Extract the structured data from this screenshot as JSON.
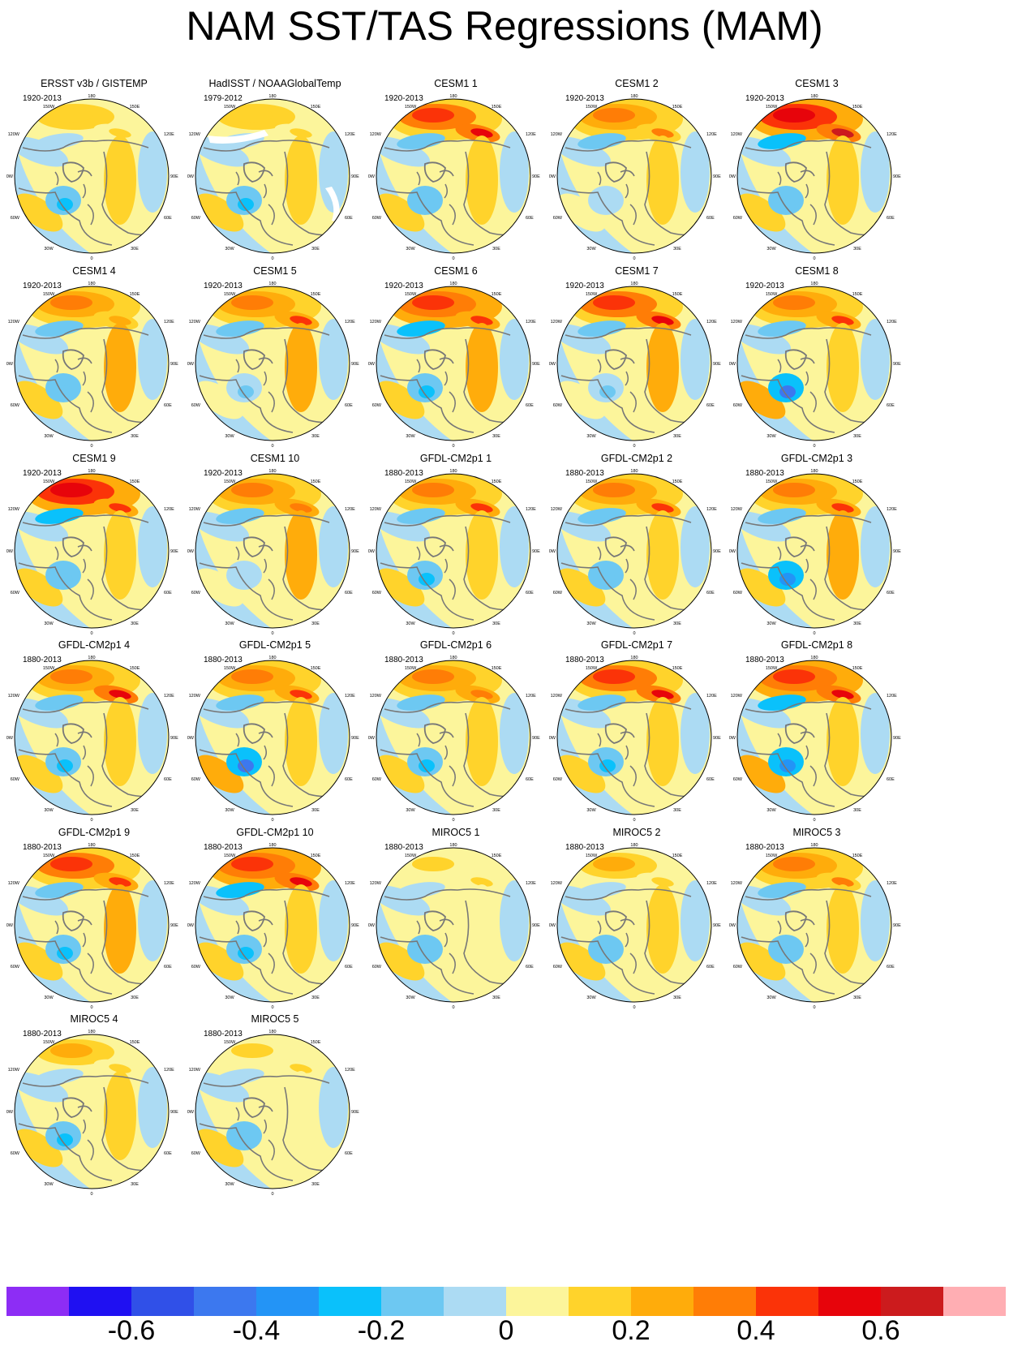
{
  "title": "NAM SST/TAS Regressions (MAM)",
  "map_labels": {
    "top": "180",
    "bottom": "0",
    "left": "90W",
    "right": "90E",
    "upper_left": "150W",
    "upper_right": "150E",
    "mid_left_upper": "120W",
    "mid_right_upper": "120E",
    "mid_left_lower": "60W",
    "mid_right_lower": "60E",
    "lower_left": "30W",
    "lower_right": "30E"
  },
  "panels": [
    {
      "title": "ERSST v3b / GISTEMP",
      "period": "1920-2013",
      "pacific": 0.15,
      "siberia": 0.1,
      "labrador": -0.3,
      "eurasia": 0.1,
      "missing": false
    },
    {
      "title": "HadISST / NOAAGlobalTemp",
      "period": "1979-2012",
      "pacific": 0.15,
      "siberia": 0.1,
      "labrador": -0.3,
      "eurasia": 0.1,
      "missing": true
    },
    {
      "title": "CESM1 1",
      "period": "1920-2013",
      "pacific": 0.4,
      "siberia": 0.55,
      "labrador": -0.2,
      "eurasia": 0.15,
      "missing": false
    },
    {
      "title": "CESM1 2",
      "period": "1920-2013",
      "pacific": 0.35,
      "siberia": 0.3,
      "labrador": -0.1,
      "eurasia": 0.1,
      "missing": false
    },
    {
      "title": "CESM1 3",
      "period": "1920-2013",
      "pacific": 0.55,
      "siberia": 0.6,
      "labrador": -0.2,
      "eurasia": 0.1,
      "missing": false
    },
    {
      "title": "CESM1 4",
      "period": "1920-2013",
      "pacific": 0.3,
      "siberia": 0.25,
      "labrador": -0.2,
      "eurasia": 0.2,
      "missing": false
    },
    {
      "title": "CESM1 5",
      "period": "1920-2013",
      "pacific": 0.3,
      "siberia": 0.45,
      "labrador": -0.15,
      "eurasia": 0.2,
      "missing": false
    },
    {
      "title": "CESM1 6",
      "period": "1920-2013",
      "pacific": 0.45,
      "siberia": 0.4,
      "labrador": -0.3,
      "eurasia": 0.2,
      "missing": false
    },
    {
      "title": "CESM1 7",
      "period": "1920-2013",
      "pacific": 0.4,
      "siberia": 0.5,
      "labrador": -0.15,
      "eurasia": 0.2,
      "missing": false
    },
    {
      "title": "CESM1 8",
      "period": "1920-2013",
      "pacific": 0.35,
      "siberia": 0.45,
      "labrador": -0.5,
      "eurasia": 0.15,
      "missing": false
    },
    {
      "title": "CESM1 9",
      "period": "1920-2013",
      "pacific": 0.55,
      "siberia": 0.45,
      "labrador": -0.2,
      "eurasia": 0.15,
      "missing": false
    },
    {
      "title": "CESM1 10",
      "period": "1920-2013",
      "pacific": 0.35,
      "siberia": 0.35,
      "labrador": -0.1,
      "eurasia": 0.2,
      "missing": false
    },
    {
      "title": "GFDL-CM2p1 1",
      "period": "1880-2013",
      "pacific": 0.3,
      "siberia": 0.45,
      "labrador": -0.3,
      "eurasia": 0.1,
      "missing": false
    },
    {
      "title": "GFDL-CM2p1 2",
      "period": "1880-2013",
      "pacific": 0.3,
      "siberia": 0.45,
      "labrador": -0.2,
      "eurasia": 0.15,
      "missing": false
    },
    {
      "title": "GFDL-CM2p1 3",
      "period": "1880-2013",
      "pacific": 0.35,
      "siberia": 0.4,
      "labrador": -0.35,
      "eurasia": 0.2,
      "missing": false
    },
    {
      "title": "GFDL-CM2p1 4",
      "period": "1880-2013",
      "pacific": 0.35,
      "siberia": 0.55,
      "labrador": -0.3,
      "eurasia": 0.1,
      "missing": false
    },
    {
      "title": "GFDL-CM2p1 5",
      "period": "1880-2013",
      "pacific": 0.3,
      "siberia": 0.4,
      "labrador": -0.45,
      "eurasia": 0.1,
      "missing": false
    },
    {
      "title": "GFDL-CM2p1 6",
      "period": "1880-2013",
      "pacific": 0.3,
      "siberia": 0.35,
      "labrador": -0.3,
      "eurasia": 0.1,
      "missing": false
    },
    {
      "title": "GFDL-CM2p1 7",
      "period": "1880-2013",
      "pacific": 0.4,
      "siberia": 0.5,
      "labrador": -0.25,
      "eurasia": 0.1,
      "missing": false
    },
    {
      "title": "GFDL-CM2p1 8",
      "period": "1880-2013",
      "pacific": 0.45,
      "siberia": 0.5,
      "labrador": -0.4,
      "eurasia": 0.1,
      "missing": false
    },
    {
      "title": "GFDL-CM2p1 9",
      "period": "1880-2013",
      "pacific": 0.4,
      "siberia": 0.4,
      "labrador": -0.3,
      "eurasia": 0.2,
      "missing": false
    },
    {
      "title": "GFDL-CM2p1 10",
      "period": "1880-2013",
      "pacific": 0.45,
      "siberia": 0.55,
      "labrador": -0.3,
      "eurasia": 0.1,
      "missing": false
    },
    {
      "title": "MIROC5 1",
      "period": "1880-2013",
      "pacific": 0.1,
      "siberia": 0.1,
      "labrador": -0.2,
      "eurasia": 0.05,
      "missing": false
    },
    {
      "title": "MIROC5 2",
      "period": "1880-2013",
      "pacific": 0.2,
      "siberia": 0.15,
      "labrador": -0.2,
      "eurasia": 0.1,
      "missing": false
    },
    {
      "title": "MIROC5 3",
      "period": "1880-2013",
      "pacific": 0.35,
      "siberia": 0.3,
      "labrador": -0.2,
      "eurasia": 0.1,
      "missing": false
    },
    {
      "title": "MIROC5 4",
      "period": "1880-2013",
      "pacific": 0.2,
      "siberia": 0.1,
      "labrador": -0.25,
      "eurasia": 0.1,
      "missing": false
    },
    {
      "title": "MIROC5 5",
      "period": "1880-2013",
      "pacific": 0.1,
      "siberia": 0.1,
      "labrador": -0.2,
      "eurasia": 0.05,
      "missing": false
    }
  ],
  "colorbar": {
    "colors": [
      "#8d2df5",
      "#1f10f2",
      "#3050e8",
      "#3c78ef",
      "#2394f6",
      "#0ac1fb",
      "#6dc8f2",
      "#acdbf3",
      "#fcf59b",
      "#ffd32b",
      "#ffac0b",
      "#ff7d06",
      "#fb3308",
      "#e7040b",
      "#cc1b1d",
      "#ffaeb3"
    ],
    "labels": [
      "-0.6",
      "-0.4",
      "-0.2",
      "0",
      "0.2",
      "0.4",
      "0.6"
    ],
    "label_values": [
      -0.6,
      -0.4,
      -0.2,
      0,
      0.2,
      0.4,
      0.6
    ],
    "levels": [
      -0.7,
      -0.6,
      -0.5,
      -0.4,
      -0.3,
      -0.2,
      -0.1,
      0,
      0.1,
      0.2,
      0.3,
      0.4,
      0.5,
      0.6,
      0.7
    ],
    "missing_color": "#ffffff",
    "coast_color": "#777777"
  }
}
